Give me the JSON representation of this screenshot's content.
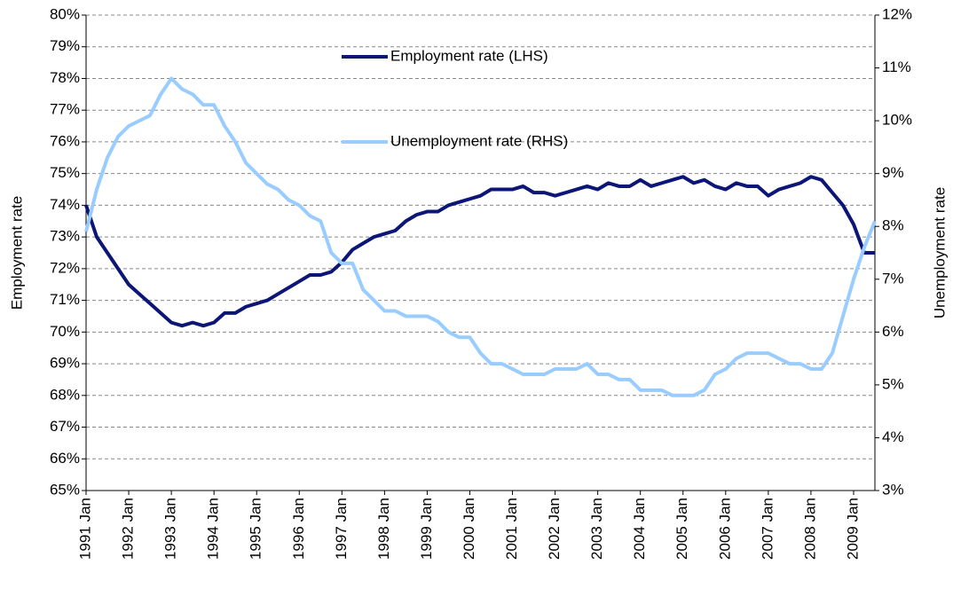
{
  "chart_data": {
    "type": "line",
    "y_label": "Employment rate",
    "y2_label": "Unemployment rate",
    "categories": [
      "1991 Jan",
      null,
      null,
      null,
      "1992 Jan",
      null,
      null,
      null,
      "1993 Jan",
      null,
      null,
      null,
      "1994 Jan",
      null,
      null,
      null,
      "1995 Jan",
      null,
      null,
      null,
      "1996 Jan",
      null,
      null,
      null,
      "1997 Jan",
      null,
      null,
      null,
      "1998 Jan",
      null,
      null,
      null,
      "1999 Jan",
      null,
      null,
      null,
      "2000 Jan",
      null,
      null,
      null,
      "2001 Jan",
      null,
      null,
      null,
      "2002 Jan",
      null,
      null,
      null,
      "2003 Jan",
      null,
      null,
      null,
      "2004 Jan",
      null,
      null,
      null,
      "2005 Jan",
      null,
      null,
      null,
      "2006 Jan",
      null,
      null,
      null,
      "2007 Jan",
      null,
      null,
      null,
      "2008 Jan",
      null,
      null,
      null,
      "2009 Jan",
      null,
      null
    ],
    "series": [
      {
        "name": "Employment rate (LHS)",
        "color": "#0b1677",
        "axis": "y",
        "values": [
          74.0,
          73.0,
          72.5,
          72.0,
          71.5,
          71.2,
          70.9,
          70.6,
          70.3,
          70.2,
          70.3,
          70.2,
          70.3,
          70.6,
          70.6,
          70.8,
          70.9,
          71.0,
          71.2,
          71.4,
          71.6,
          71.8,
          71.8,
          71.9,
          72.2,
          72.6,
          72.8,
          73.0,
          73.1,
          73.2,
          73.5,
          73.7,
          73.8,
          73.8,
          74.0,
          74.1,
          74.2,
          74.3,
          74.5,
          74.5,
          74.5,
          74.6,
          74.4,
          74.4,
          74.3,
          74.4,
          74.5,
          74.6,
          74.5,
          74.7,
          74.6,
          74.6,
          74.8,
          74.6,
          74.7,
          74.8,
          74.9,
          74.7,
          74.8,
          74.6,
          74.5,
          74.7,
          74.6,
          74.6,
          74.3,
          74.5,
          74.6,
          74.7,
          74.9,
          74.8,
          74.4,
          74.0,
          73.4,
          72.5,
          72.5
        ]
      },
      {
        "name": "Unemployment rate (RHS)",
        "color": "#99ccff",
        "axis": "y2",
        "values": [
          7.9,
          8.7,
          9.3,
          9.7,
          9.9,
          10.0,
          10.1,
          10.5,
          10.8,
          10.6,
          10.5,
          10.3,
          10.3,
          9.9,
          9.6,
          9.2,
          9.0,
          8.8,
          8.7,
          8.5,
          8.4,
          8.2,
          8.1,
          7.5,
          7.3,
          7.3,
          6.8,
          6.6,
          6.4,
          6.4,
          6.3,
          6.3,
          6.3,
          6.2,
          6.0,
          5.9,
          5.9,
          5.6,
          5.4,
          5.4,
          5.3,
          5.2,
          5.2,
          5.2,
          5.3,
          5.3,
          5.3,
          5.4,
          5.2,
          5.2,
          5.1,
          5.1,
          4.9,
          4.9,
          4.9,
          4.8,
          4.8,
          4.8,
          4.9,
          5.2,
          5.3,
          5.5,
          5.6,
          5.6,
          5.6,
          5.5,
          5.4,
          5.4,
          5.3,
          5.3,
          5.6,
          6.3,
          7.0,
          7.6,
          8.1
        ]
      }
    ],
    "ylim": [
      65,
      80
    ],
    "yticks": [
      {
        "value": 65,
        "label": "65%"
      },
      {
        "value": 66,
        "label": "66%"
      },
      {
        "value": 67,
        "label": "67%"
      },
      {
        "value": 68,
        "label": "68%"
      },
      {
        "value": 69,
        "label": "69%"
      },
      {
        "value": 70,
        "label": "70%"
      },
      {
        "value": 71,
        "label": "71%"
      },
      {
        "value": 72,
        "label": "72%"
      },
      {
        "value": 73,
        "label": "73%"
      },
      {
        "value": 74,
        "label": "74%"
      },
      {
        "value": 75,
        "label": "75%"
      },
      {
        "value": 76,
        "label": "76%"
      },
      {
        "value": 77,
        "label": "77%"
      },
      {
        "value": 78,
        "label": "78%"
      },
      {
        "value": 79,
        "label": "79%"
      },
      {
        "value": 80,
        "label": "80%"
      }
    ],
    "y2lim": [
      3,
      12
    ],
    "y2ticks": [
      {
        "value": 3,
        "label": "3%"
      },
      {
        "value": 4,
        "label": "4%"
      },
      {
        "value": 5,
        "label": "5%"
      },
      {
        "value": 6,
        "label": "6%"
      },
      {
        "value": 7,
        "label": "7%"
      },
      {
        "value": 8,
        "label": "8%"
      },
      {
        "value": 9,
        "label": "9%"
      },
      {
        "value": 10,
        "label": "10%"
      },
      {
        "value": 11,
        "label": "11%"
      },
      {
        "value": 12,
        "label": "12%"
      }
    ],
    "grid": true
  }
}
